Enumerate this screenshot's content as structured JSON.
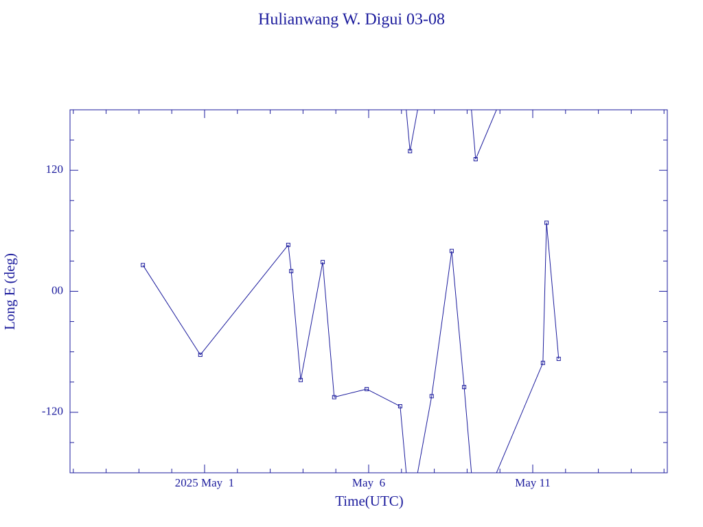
{
  "chart_data": {
    "type": "line",
    "title": "Hulianwang W. Digui 03-08",
    "xlabel": "Time(UTC)",
    "ylabel": "Long E (deg)",
    "color": "#1a1a9c",
    "x": [
      -0.88,
      0.87,
      3.55,
      3.64,
      3.93,
      4.6,
      4.95,
      5.94,
      6.96,
      7.26,
      7.92,
      8.53,
      8.91,
      9.26,
      11.31,
      11.42,
      11.79
    ],
    "values": [
      26,
      -63,
      46,
      20,
      -88,
      29,
      -105,
      -97,
      -114,
      139,
      -104,
      40,
      -95,
      131,
      -71,
      68,
      -67
    ],
    "xlim": [
      -3.1,
      15.1
    ],
    "xticks": [
      {
        "value": 1,
        "label": "2025 May  1"
      },
      {
        "value": 6,
        "label": "May  6"
      },
      {
        "value": 11,
        "label": "May 11"
      }
    ],
    "xminorticks": [
      -3,
      -2,
      -1,
      0,
      2,
      3,
      4,
      5,
      7,
      8,
      9,
      10,
      12,
      13,
      14,
      15
    ],
    "ylim": [
      -180,
      180
    ],
    "yticks": [
      -120,
      {
        "value": 0,
        "label": "00"
      },
      120
    ],
    "yminorticks": [
      -150,
      -90,
      -60,
      -30,
      30,
      60,
      90,
      150
    ],
    "wrap": 360
  }
}
